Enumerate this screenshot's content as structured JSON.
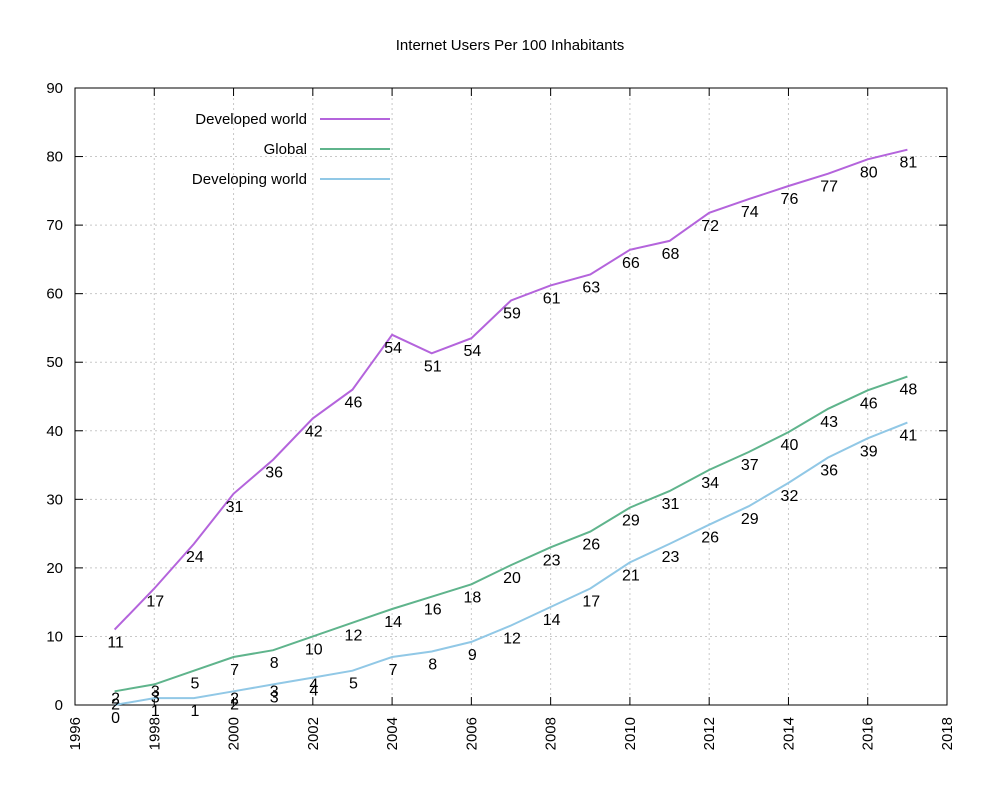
{
  "chart_data": {
    "type": "line",
    "title": "Internet Users Per 100 Inhabitants",
    "xlabel": "",
    "ylabel": "",
    "xlim": [
      1996,
      2018
    ],
    "ylim": [
      0,
      90
    ],
    "xticks": [
      1996,
      1998,
      2000,
      2002,
      2004,
      2006,
      2008,
      2010,
      2012,
      2014,
      2016,
      2018
    ],
    "yticks": [
      0,
      10,
      20,
      30,
      40,
      50,
      60,
      70,
      80,
      90
    ],
    "grid": true,
    "legend_position": "top-left",
    "x": [
      1997,
      1998,
      1999,
      2000,
      2001,
      2002,
      2003,
      2004,
      2005,
      2006,
      2007,
      2008,
      2009,
      2010,
      2011,
      2012,
      2013,
      2014,
      2015,
      2016,
      2017
    ],
    "series": [
      {
        "name": "Developed world",
        "color": "#b464dc",
        "values": [
          11,
          17,
          24,
          31,
          36,
          42,
          46,
          54,
          51,
          54,
          59,
          61,
          63,
          66,
          68,
          72,
          74,
          76,
          77,
          80,
          81
        ],
        "plotted": [
          11,
          17,
          23.5,
          30.8,
          35.8,
          41.8,
          46,
          54,
          51.3,
          53.5,
          59,
          61.2,
          62.8,
          66.4,
          67.7,
          71.8,
          73.8,
          75.7,
          77.5,
          79.6,
          81
        ]
      },
      {
        "name": "Global",
        "color": "#5fb48c",
        "values": [
          2,
          3,
          5,
          7,
          8,
          10,
          12,
          14,
          16,
          18,
          20,
          23,
          26,
          29,
          31,
          34,
          37,
          40,
          43,
          46,
          48
        ],
        "plotted": [
          2,
          3,
          5,
          7,
          8,
          10,
          12,
          14,
          15.8,
          17.6,
          20.4,
          23,
          25.3,
          28.8,
          31.2,
          34.3,
          36.9,
          39.8,
          43.2,
          45.9,
          47.9
        ]
      },
      {
        "name": "Developing world",
        "color": "#91c8e6",
        "values": [
          0,
          1,
          1,
          2,
          3,
          4,
          5,
          7,
          8,
          9,
          12,
          14,
          17,
          21,
          23,
          26,
          29,
          32,
          36,
          39,
          41
        ],
        "plotted": [
          0,
          1,
          1,
          2,
          3,
          4,
          5,
          7,
          7.8,
          9.2,
          11.6,
          14.3,
          17,
          20.8,
          23.5,
          26.3,
          29,
          32.4,
          36.1,
          38.9,
          41.2
        ]
      }
    ],
    "extra_labels": [
      {
        "x": 1997,
        "label": "2",
        "series": 1
      },
      {
        "x": 1998,
        "label": "3",
        "series": 1
      },
      {
        "x": 2000,
        "label": "2",
        "series": 2
      },
      {
        "x": 2001,
        "label": "3",
        "series": 2
      },
      {
        "x": 2002,
        "label": "4",
        "series": 2
      }
    ]
  }
}
